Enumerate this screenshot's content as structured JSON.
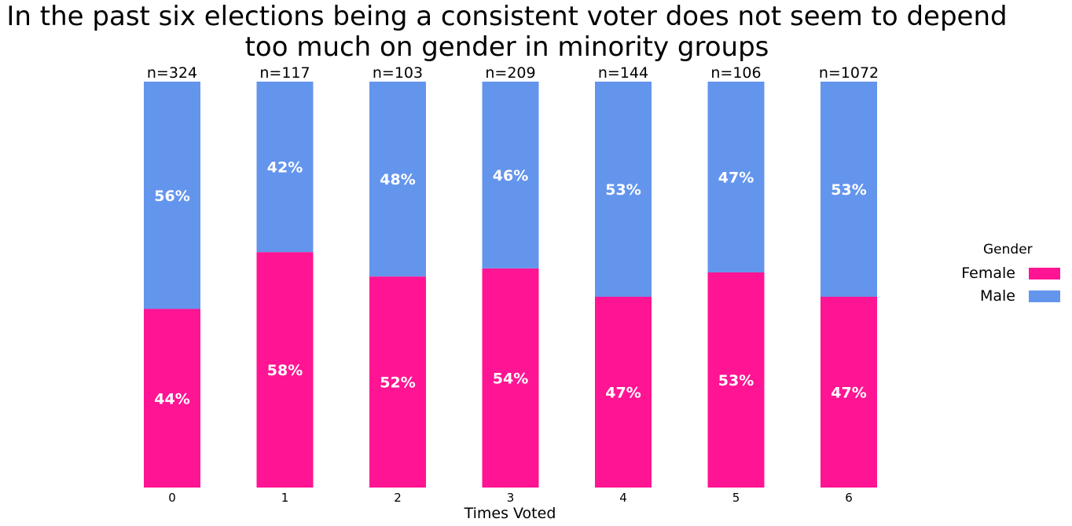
{
  "chart_data": {
    "type": "bar",
    "stacked": true,
    "normalized": true,
    "title": "In the past six elections being a consistent voter does not seem to depend too much on gender in minority groups",
    "title_lines": [
      "In the past six elections being a consistent voter does not seem to depend",
      "too much on gender in minority groups"
    ],
    "xlabel": "Times Voted",
    "ylabel": "",
    "categories": [
      "0",
      "1",
      "2",
      "3",
      "4",
      "5",
      "6"
    ],
    "sample_sizes": [
      "n=324",
      "n=117",
      "n=103",
      "n=209",
      "n=144",
      "n=106",
      "n=1072"
    ],
    "series": [
      {
        "name": "Female",
        "color": "#ff1493",
        "values": [
          44,
          58,
          52,
          54,
          47,
          53,
          47
        ],
        "labels": [
          "44%",
          "58%",
          "52%",
          "54%",
          "47%",
          "53%",
          "47%"
        ]
      },
      {
        "name": "Male",
        "color": "#6495ed",
        "values": [
          56,
          42,
          48,
          46,
          53,
          47,
          53
        ],
        "labels": [
          "56%",
          "42%",
          "48%",
          "46%",
          "53%",
          "47%",
          "53%"
        ]
      }
    ],
    "ylim": [
      0,
      100
    ],
    "grid": false,
    "legend": {
      "title": "Gender",
      "placement": "right"
    }
  }
}
